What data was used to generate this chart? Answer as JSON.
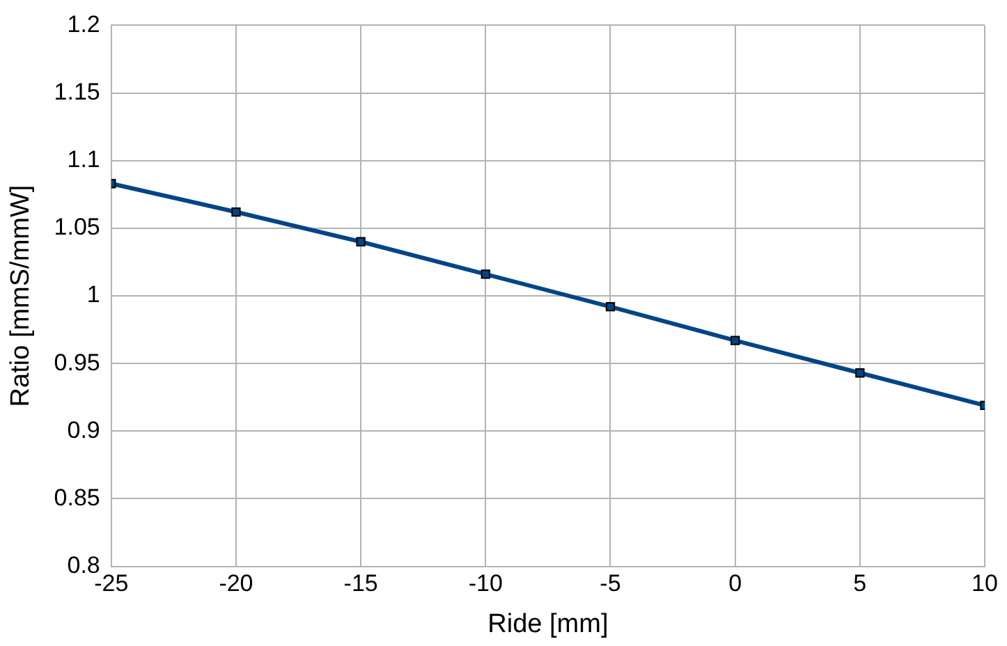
{
  "chart_data": {
    "type": "line",
    "xlabel": "Ride [mm]",
    "ylabel": "Ratio [mmS/mmW]",
    "x": [
      -25,
      -20,
      -15,
      -10,
      -5,
      0,
      5,
      10
    ],
    "series": [
      {
        "color": "#004586",
        "values": [
          1.083,
          1.062,
          1.04,
          1.016,
          0.992,
          0.967,
          0.943,
          0.919
        ]
      }
    ],
    "xlim": [
      -25,
      10
    ],
    "xticks": [
      -25,
      -20,
      -15,
      -10,
      -5,
      0,
      5,
      10
    ],
    "ylim": [
      0.8,
      1.2
    ],
    "yticks": [
      0.8,
      0.85,
      0.9,
      0.95,
      1,
      1.05,
      1.1,
      1.15,
      1.2
    ],
    "grid": true,
    "legend": false,
    "marker": "square",
    "line_style": "solid"
  }
}
